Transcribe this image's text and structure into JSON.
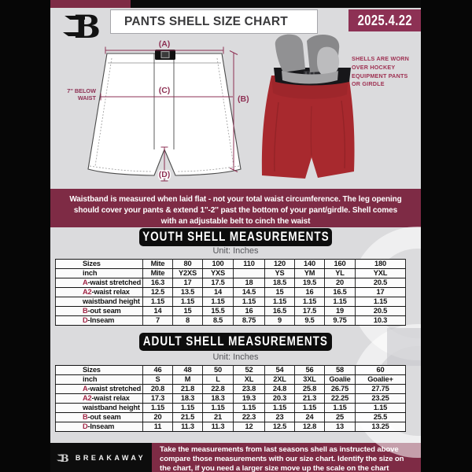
{
  "header": {
    "title": "PANTS SHELL SIZE CHART",
    "date": "2025.4.22",
    "logo_letter": "B"
  },
  "diagram": {
    "label_a": "(A)",
    "label_b": "(B)",
    "label_c": "(C)",
    "label_d": "(D)",
    "waist_note": "7'' BELOW\nWAIST"
  },
  "photo_note": "SHELLS ARE WORN\nOVER HOCKEY\nEQUIPMENT PANTS\nOR GIRDLE",
  "info_banner": "Waistband is measured when laid flat - not your total waist circumference. The leg opening should cover your pants & extend 1''-2'' past the bottom of your pant/girdle. Shell comes with an adjustable belt to cinch the waist",
  "youth": {
    "heading": "YOUTH SHELL MEASUREMENTS",
    "unit": "Unit: Inches",
    "rows": [
      {
        "prefix": "",
        "label": "Sizes",
        "values": [
          "Mite",
          "80",
          "100",
          "110",
          "120",
          "140",
          "160",
          "180"
        ]
      },
      {
        "prefix": "",
        "label": "inch",
        "values": [
          "Mite",
          "Y2XS",
          "YXS",
          "",
          "YS",
          "YM",
          "YL",
          "YXL"
        ]
      },
      {
        "prefix": "A",
        "label": "-waist stretched",
        "values": [
          "16.3",
          "17",
          "17.5",
          "18",
          "18.5",
          "19.5",
          "20",
          "20.5"
        ]
      },
      {
        "prefix": "A2",
        "label": "-waist relax",
        "values": [
          "12.5",
          "13.5",
          "14",
          "14.5",
          "15",
          "16",
          "16.5",
          "17"
        ]
      },
      {
        "prefix": "",
        "label": "waistband height",
        "values": [
          "1.15",
          "1.15",
          "1.15",
          "1.15",
          "1.15",
          "1.15",
          "1.15",
          "1.15"
        ]
      },
      {
        "prefix": "B",
        "label": "-out seam",
        "values": [
          "14",
          "15",
          "15.5",
          "16",
          "16.5",
          "17.5",
          "19",
          "20.5"
        ]
      },
      {
        "prefix": "D",
        "label": "-Inseam",
        "values": [
          "7",
          "8",
          "8.5",
          "8.75",
          "9",
          "9.5",
          "9.75",
          "10.3"
        ]
      }
    ]
  },
  "adult": {
    "heading": "ADULT SHELL MEASUREMENTS",
    "unit": "Unit: Inches",
    "rows": [
      {
        "prefix": "",
        "label": "Sizes",
        "values": [
          "46",
          "48",
          "50",
          "52",
          "54",
          "56",
          "58",
          "60"
        ]
      },
      {
        "prefix": "",
        "label": "inch",
        "values": [
          "S",
          "M",
          "L",
          "XL",
          "2XL",
          "3XL",
          "Goalie",
          "Goalie+"
        ]
      },
      {
        "prefix": "A",
        "label": "-waist stretched",
        "values": [
          "20.8",
          "21.8",
          "22.8",
          "23.8",
          "24.8",
          "25.8",
          "26.75",
          "27.75"
        ]
      },
      {
        "prefix": "A2",
        "label": "-waist relax",
        "values": [
          "17.3",
          "18.3",
          "18.3",
          "19.3",
          "20.3",
          "21.3",
          "22.25",
          "23.25"
        ]
      },
      {
        "prefix": "",
        "label": "waistband height",
        "values": [
          "1.15",
          "1.15",
          "1.15",
          "1.15",
          "1.15",
          "1.15",
          "1.15",
          "1.15"
        ]
      },
      {
        "prefix": "B",
        "label": "-out seam",
        "values": [
          "20",
          "21.5",
          "21",
          "22.3",
          "23",
          "24",
          "25",
          "25.5"
        ]
      },
      {
        "prefix": "D",
        "label": "-Inseam",
        "values": [
          "11",
          "11.3",
          "11.3",
          "12",
          "12.5",
          "12.8",
          "13",
          "13.25"
        ]
      }
    ]
  },
  "footer": {
    "brand": "BREAKAWAY",
    "note": "Take the measurements from last seasons shell as instructed above compare those measurements  with our size chart. Identify the size on the chart, if you need a larger size move up the scale on the chart"
  },
  "colors": {
    "maroon_banner": "#7e2b45",
    "maroon_accent": "#8d3154",
    "table_prefix_red": "#a02646",
    "shell_red": "#a8292e",
    "page_gray": "#dbdbdd",
    "black": "#0d0d0d"
  }
}
